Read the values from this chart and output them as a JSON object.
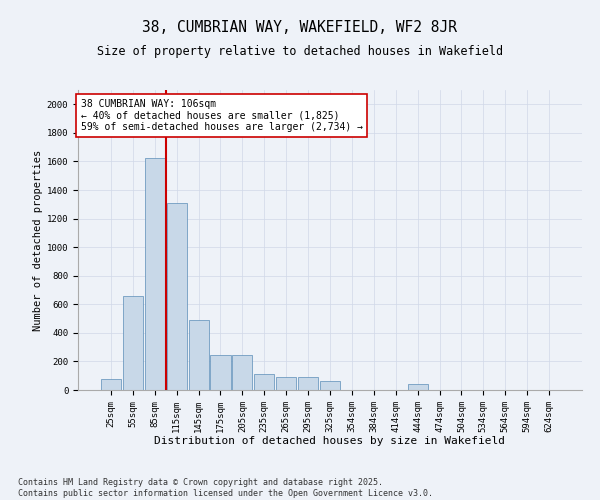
{
  "title": "38, CUMBRIAN WAY, WAKEFIELD, WF2 8JR",
  "subtitle": "Size of property relative to detached houses in Wakefield",
  "xlabel": "Distribution of detached houses by size in Wakefield",
  "ylabel": "Number of detached properties",
  "categories": [
    "25sqm",
    "55sqm",
    "85sqm",
    "115sqm",
    "145sqm",
    "175sqm",
    "205sqm",
    "235sqm",
    "265sqm",
    "295sqm",
    "325sqm",
    "354sqm",
    "384sqm",
    "414sqm",
    "444sqm",
    "474sqm",
    "504sqm",
    "534sqm",
    "564sqm",
    "594sqm",
    "624sqm"
  ],
  "values": [
    75,
    660,
    1625,
    1310,
    490,
    245,
    245,
    115,
    90,
    90,
    65,
    0,
    0,
    0,
    40,
    0,
    0,
    0,
    0,
    0,
    0
  ],
  "bar_color": "#c8d8e8",
  "bar_edge_color": "#5b8db8",
  "vline_color": "#cc0000",
  "annotation_text": "38 CUMBRIAN WAY: 106sqm\n← 40% of detached houses are smaller (1,825)\n59% of semi-detached houses are larger (2,734) →",
  "annotation_box_color": "#ffffff",
  "annotation_box_edge_color": "#cc0000",
  "ylim": [
    0,
    2100
  ],
  "yticks": [
    0,
    200,
    400,
    600,
    800,
    1000,
    1200,
    1400,
    1600,
    1800,
    2000
  ],
  "grid_color": "#d0d8e8",
  "background_color": "#eef2f8",
  "footer_line1": "Contains HM Land Registry data © Crown copyright and database right 2025.",
  "footer_line2": "Contains public sector information licensed under the Open Government Licence v3.0.",
  "title_fontsize": 10.5,
  "subtitle_fontsize": 8.5,
  "xlabel_fontsize": 8,
  "ylabel_fontsize": 7.5,
  "tick_fontsize": 6.5,
  "annotation_fontsize": 7,
  "footer_fontsize": 6
}
